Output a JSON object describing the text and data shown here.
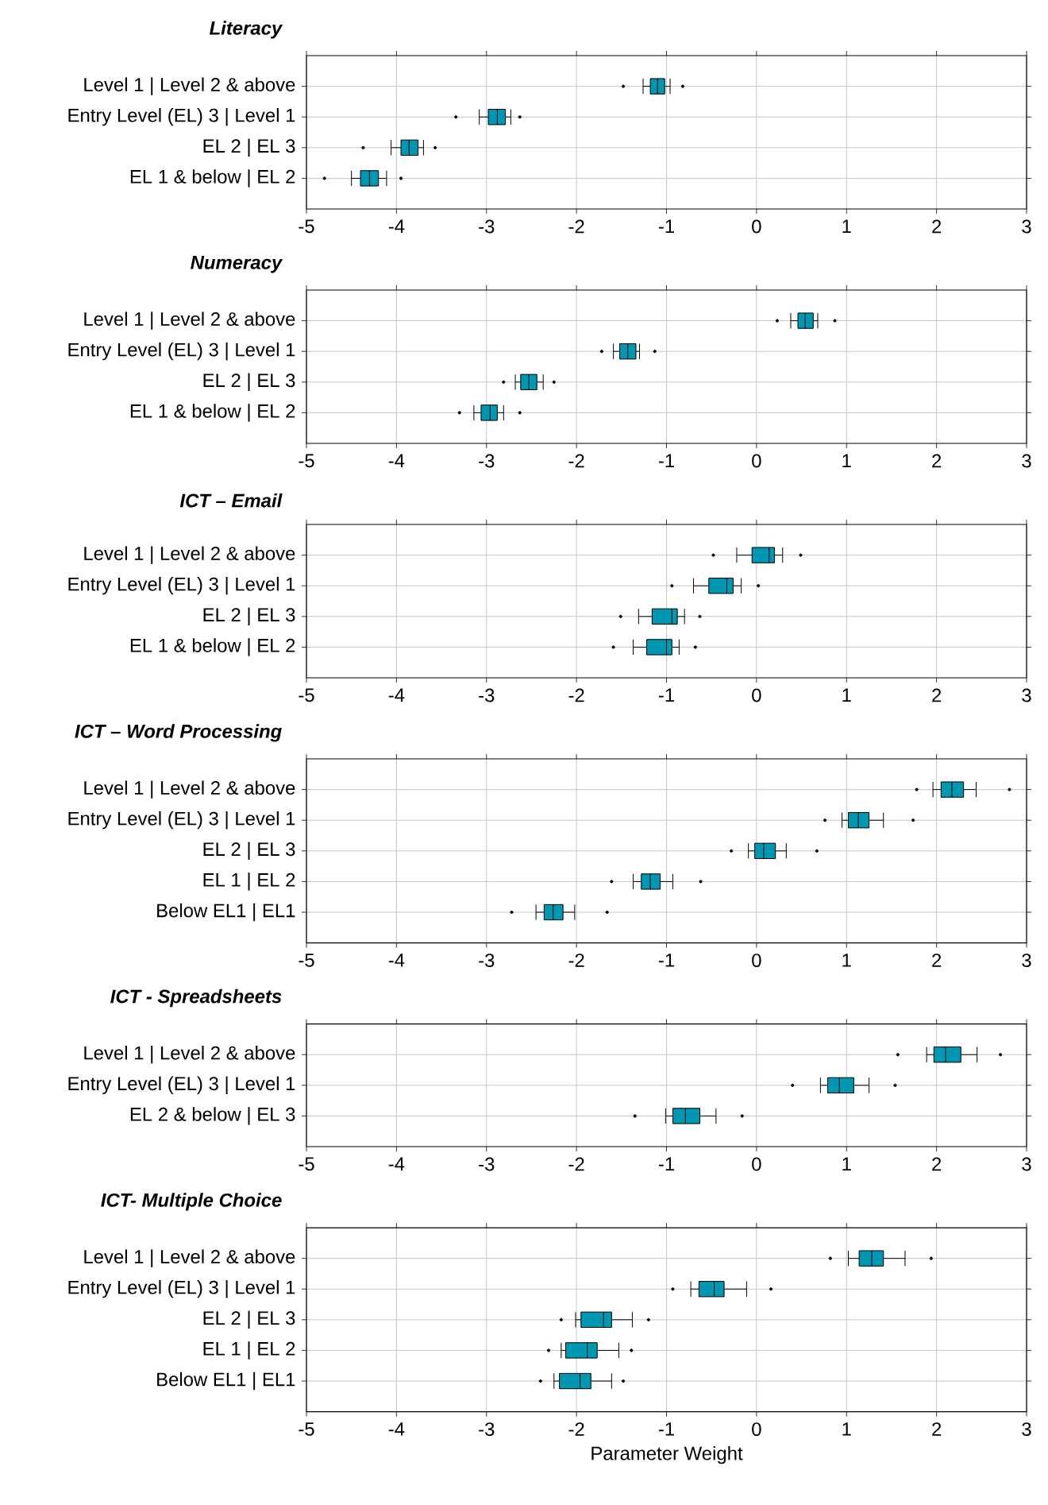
{
  "chart_data": [
    {
      "type": "box",
      "orientation": "horizontal",
      "title": "Literacy",
      "categories": [
        "Level 1 | Level 2 & above",
        "Entry Level (EL) 3 | Level 1",
        "EL 2 | EL 3",
        "EL 1 & below | EL 2"
      ],
      "color": "#0097b2",
      "xlim": [
        -5,
        3
      ],
      "xticks": [
        -5,
        -4,
        -3,
        -2,
        -1,
        0,
        1,
        2,
        3
      ],
      "grid": true,
      "boxes": [
        {
          "low": -1.26,
          "q1": -1.18,
          "median": -1.1,
          "q3": -1.02,
          "high": -0.96,
          "outliers": [
            -1.48,
            -0.82
          ]
        },
        {
          "low": -3.08,
          "q1": -2.98,
          "median": -2.88,
          "q3": -2.79,
          "high": -2.73,
          "outliers": [
            -3.34,
            -2.63
          ]
        },
        {
          "low": -4.06,
          "q1": -3.95,
          "median": -3.86,
          "q3": -3.76,
          "high": -3.7,
          "outliers": [
            -4.37,
            -3.57
          ]
        },
        {
          "low": -4.5,
          "q1": -4.4,
          "median": -4.3,
          "q3": -4.2,
          "high": -4.11,
          "outliers": [
            -4.8,
            -3.95
          ]
        }
      ]
    },
    {
      "type": "box",
      "orientation": "horizontal",
      "title": "Numeracy",
      "categories": [
        "Level 1 | Level 2 & above",
        "Entry Level (EL) 3 | Level 1",
        "EL 2 | EL 3",
        "EL 1 & below | EL 2"
      ],
      "color": "#0097b2",
      "xlim": [
        -5,
        3
      ],
      "xticks": [
        -5,
        -4,
        -3,
        -2,
        -1,
        0,
        1,
        2,
        3
      ],
      "grid": true,
      "boxes": [
        {
          "low": 0.38,
          "q1": 0.46,
          "median": 0.54,
          "q3": 0.63,
          "high": 0.68,
          "outliers": [
            0.23,
            0.87
          ]
        },
        {
          "low": -1.59,
          "q1": -1.52,
          "median": -1.43,
          "q3": -1.34,
          "high": -1.3,
          "outliers": [
            -1.72,
            -1.13
          ]
        },
        {
          "low": -2.68,
          "q1": -2.62,
          "median": -2.53,
          "q3": -2.44,
          "high": -2.37,
          "outliers": [
            -2.81,
            -2.25
          ]
        },
        {
          "low": -3.14,
          "q1": -3.06,
          "median": -2.96,
          "q3": -2.88,
          "high": -2.81,
          "outliers": [
            -3.3,
            -2.63
          ]
        }
      ]
    },
    {
      "type": "box",
      "orientation": "horizontal",
      "title": "ICT – Email",
      "categories": [
        "Level 1 | Level 2 & above",
        "Entry Level (EL) 3 | Level 1",
        "EL 2 | EL 3",
        "EL 1 & below | EL 2"
      ],
      "color": "#0097b2",
      "xlim": [
        -5,
        3
      ],
      "xticks": [
        -5,
        -4,
        -3,
        -2,
        -1,
        0,
        1,
        2,
        3
      ],
      "grid": true,
      "boxes": [
        {
          "low": -0.22,
          "q1": -0.05,
          "median": 0.14,
          "q3": 0.2,
          "high": 0.29,
          "outliers": [
            -0.48,
            0.49
          ]
        },
        {
          "low": -0.7,
          "q1": -0.53,
          "median": -0.33,
          "q3": -0.26,
          "high": -0.17,
          "outliers": [
            -0.94,
            0.02
          ]
        },
        {
          "low": -1.31,
          "q1": -1.16,
          "median": -0.94,
          "q3": -0.88,
          "high": -0.8,
          "outliers": [
            -1.51,
            -0.63
          ]
        },
        {
          "low": -1.37,
          "q1": -1.22,
          "median": -1.0,
          "q3": -0.94,
          "high": -0.86,
          "outliers": [
            -1.59,
            -0.68
          ]
        }
      ]
    },
    {
      "type": "box",
      "orientation": "horizontal",
      "title": "ICT – Word Processing",
      "categories": [
        "Level 1 | Level 2 & above",
        "Entry Level (EL) 3 | Level 1",
        "EL 2 | EL 3",
        "EL 1 | EL 2",
        "Below EL1 | EL1"
      ],
      "color": "#0097b2",
      "xlim": [
        -5,
        3
      ],
      "xticks": [
        -5,
        -4,
        -3,
        -2,
        -1,
        0,
        1,
        2,
        3
      ],
      "grid": true,
      "boxes": [
        {
          "low": 1.96,
          "q1": 2.05,
          "median": 2.17,
          "q3": 2.3,
          "high": 2.44,
          "outliers": [
            1.78,
            2.81
          ]
        },
        {
          "low": 0.95,
          "q1": 1.02,
          "median": 1.13,
          "q3": 1.25,
          "high": 1.41,
          "outliers": [
            0.76,
            1.74
          ]
        },
        {
          "low": -0.09,
          "q1": -0.02,
          "median": 0.08,
          "q3": 0.21,
          "high": 0.33,
          "outliers": [
            -0.28,
            0.67
          ]
        },
        {
          "low": -1.37,
          "q1": -1.28,
          "median": -1.18,
          "q3": -1.07,
          "high": -0.93,
          "outliers": [
            -1.61,
            -0.62
          ]
        },
        {
          "low": -2.45,
          "q1": -2.36,
          "median": -2.26,
          "q3": -2.15,
          "high": -2.02,
          "outliers": [
            -2.72,
            -1.66
          ]
        }
      ]
    },
    {
      "type": "box",
      "orientation": "horizontal",
      "title": "ICT - Spreadsheets",
      "categories": [
        "Level 1 | Level 2 & above",
        "Entry Level (EL) 3 | Level 1",
        "EL 2 & below | EL 3"
      ],
      "color": "#0097b2",
      "xlim": [
        -5,
        3
      ],
      "xticks": [
        -5,
        -4,
        -3,
        -2,
        -1,
        0,
        1,
        2,
        3
      ],
      "grid": true,
      "boxes": [
        {
          "low": 1.89,
          "q1": 1.97,
          "median": 2.1,
          "q3": 2.27,
          "high": 2.45,
          "outliers": [
            1.57,
            2.71
          ]
        },
        {
          "low": 0.71,
          "q1": 0.79,
          "median": 0.92,
          "q3": 1.08,
          "high": 1.25,
          "outliers": [
            0.4,
            1.54
          ]
        },
        {
          "low": -1.01,
          "q1": -0.93,
          "median": -0.79,
          "q3": -0.63,
          "high": -0.45,
          "outliers": [
            -1.35,
            -0.16
          ]
        }
      ]
    },
    {
      "type": "box",
      "orientation": "horizontal",
      "title": "ICT- Multiple Choice",
      "xlabel": "Parameter Weight",
      "categories": [
        "Level 1 | Level 2 & above",
        "Entry Level (EL) 3 | Level 1",
        "EL 2 | EL 3",
        "EL 1 | EL 2",
        "Below EL1 | EL1"
      ],
      "color": "#0097b2",
      "xlim": [
        -5,
        3
      ],
      "xticks": [
        -5,
        -4,
        -3,
        -2,
        -1,
        0,
        1,
        2,
        3
      ],
      "grid": true,
      "boxes": [
        {
          "low": 1.02,
          "q1": 1.14,
          "median": 1.28,
          "q3": 1.41,
          "high": 1.65,
          "outliers": [
            0.82,
            1.94
          ]
        },
        {
          "low": -0.73,
          "q1": -0.64,
          "median": -0.47,
          "q3": -0.36,
          "high": -0.11,
          "outliers": [
            -0.93,
            0.16
          ]
        },
        {
          "low": -2.01,
          "q1": -1.95,
          "median": -1.7,
          "q3": -1.61,
          "high": -1.38,
          "outliers": [
            -2.17,
            -1.2
          ]
        },
        {
          "low": -2.17,
          "q1": -2.12,
          "median": -1.88,
          "q3": -1.77,
          "high": -1.53,
          "outliers": [
            -2.31,
            -1.39
          ]
        },
        {
          "low": -2.25,
          "q1": -2.19,
          "median": -1.96,
          "q3": -1.84,
          "high": -1.61,
          "outliers": [
            -2.4,
            -1.48
          ]
        }
      ]
    }
  ]
}
